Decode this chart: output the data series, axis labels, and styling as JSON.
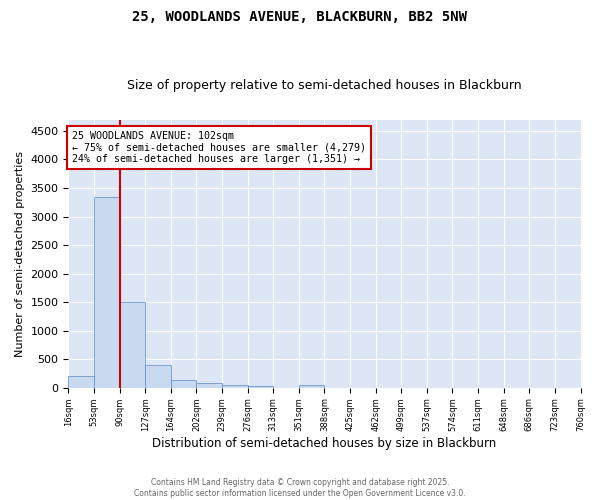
{
  "title1": "25, WOODLANDS AVENUE, BLACKBURN, BB2 5NW",
  "title2": "Size of property relative to semi-detached houses in Blackburn",
  "xlabel": "Distribution of semi-detached houses by size in Blackburn",
  "ylabel": "Number of semi-detached properties",
  "bar_values": [
    200,
    3350,
    1500,
    390,
    140,
    80,
    50,
    30,
    0,
    40,
    0,
    0,
    0,
    0,
    0,
    0,
    0,
    0,
    0,
    0
  ],
  "bin_labels": [
    "16sqm",
    "53sqm",
    "90sqm",
    "127sqm",
    "164sqm",
    "202sqm",
    "239sqm",
    "276sqm",
    "313sqm",
    "351sqm",
    "388sqm",
    "425sqm",
    "462sqm",
    "499sqm",
    "537sqm",
    "574sqm",
    "611sqm",
    "648sqm",
    "686sqm",
    "723sqm",
    "760sqm"
  ],
  "bar_color": "#c9d9f0",
  "bar_edge_color": "#5a8ac6",
  "vline_x": 2,
  "vline_color": "#cc0000",
  "annotation_text": "25 WOODLANDS AVENUE: 102sqm\n← 75% of semi-detached houses are smaller (4,279)\n24% of semi-detached houses are larger (1,351) →",
  "annotation_box_color": "#ffffff",
  "annotation_box_edge": "#cc0000",
  "ylim": [
    0,
    4700
  ],
  "yticks": [
    0,
    500,
    1000,
    1500,
    2000,
    2500,
    3000,
    3500,
    4000,
    4500
  ],
  "background_color": "#dde6f5",
  "footer_text": "Contains HM Land Registry data © Crown copyright and database right 2025.\nContains public sector information licensed under the Open Government Licence v3.0.",
  "title1_fontsize": 10,
  "title2_fontsize": 9
}
